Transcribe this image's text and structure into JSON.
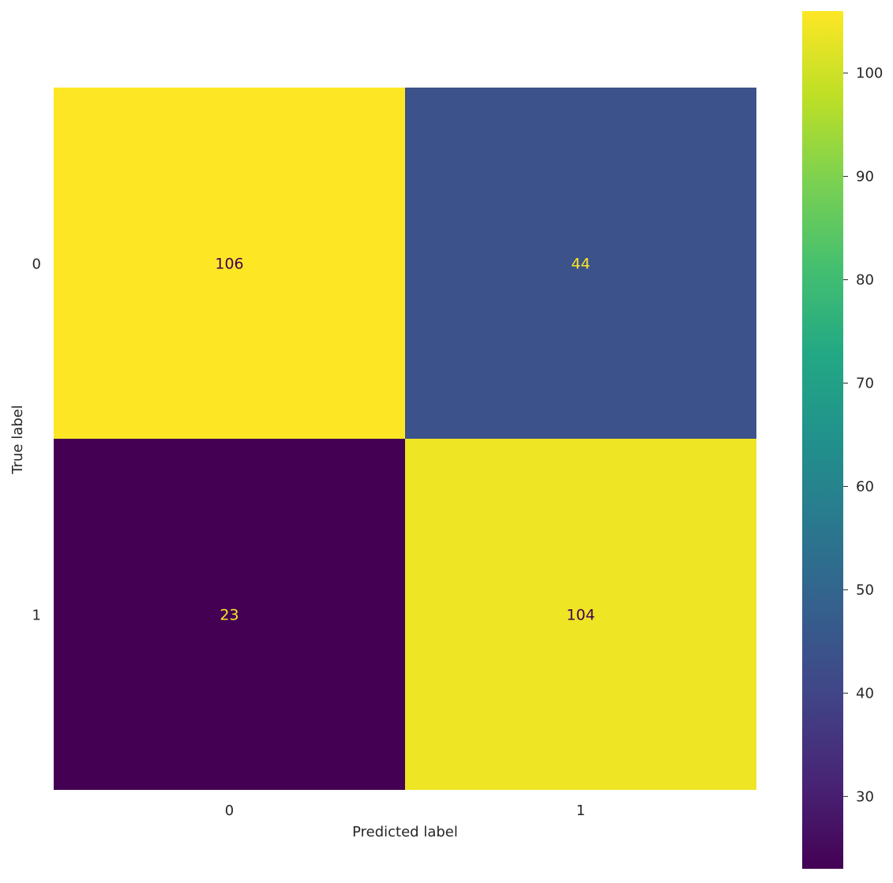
{
  "chart_data": {
    "type": "heatmap",
    "title": "",
    "xlabel": "Predicted label",
    "ylabel": "True label",
    "x_categories": [
      "0",
      "1"
    ],
    "y_categories": [
      "0",
      "1"
    ],
    "matrix": [
      [
        106,
        44
      ],
      [
        23,
        104
      ]
    ],
    "colorbar": {
      "colormap": "viridis",
      "min": 23,
      "max": 106,
      "ticks": [
        30,
        40,
        50,
        60,
        70,
        80,
        90,
        100
      ]
    },
    "grid": false,
    "text_color_dark_cells": "#fde725",
    "text_color_light_cells": "#440154"
  }
}
